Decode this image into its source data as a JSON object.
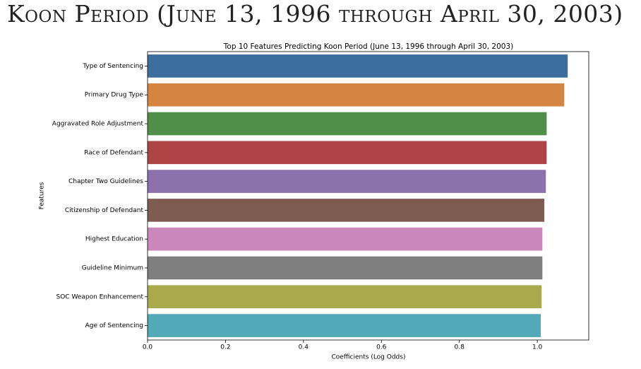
{
  "slide_title": "Koon Period (June 13, 1996 through April 30, 2003)",
  "chart_data": {
    "type": "barh",
    "title": "Top 10 Features Predicting Koon Period (June 13, 1996 through April 30, 2003)",
    "xlabel": "Coefficients (Log Odds)",
    "ylabel": "Features",
    "categories": [
      "Type of Sentencing",
      "Primary Drug Type",
      "Aggravated Role Adjustment",
      "Race of Defendant",
      "Chapter Two Guidelines",
      "Citizenship of Defendant",
      "Highest Education",
      "Guideline Minimum",
      "SOC Weapon Enhancement",
      "Age of Sentencing"
    ],
    "values": [
      1.078,
      1.069,
      1.024,
      1.024,
      1.022,
      1.018,
      1.013,
      1.013,
      1.011,
      1.009
    ],
    "colors": [
      "#3d6f9e",
      "#d5853f",
      "#4f8f47",
      "#ad4544",
      "#8b72ad",
      "#7f5c52",
      "#cb87bc",
      "#7f7f7f",
      "#a9aa4b",
      "#52a9b8"
    ],
    "xlim": [
      0,
      1.132
    ],
    "xticks": [
      {
        "value": 0,
        "label": "0.0"
      },
      {
        "value": 0.2,
        "label": "0.2"
      },
      {
        "value": 0.4,
        "label": "0.4"
      },
      {
        "value": 0.6,
        "label": "0.6"
      },
      {
        "value": 0.8,
        "label": "0.8"
      },
      {
        "value": 1,
        "label": "1.0"
      }
    ]
  }
}
